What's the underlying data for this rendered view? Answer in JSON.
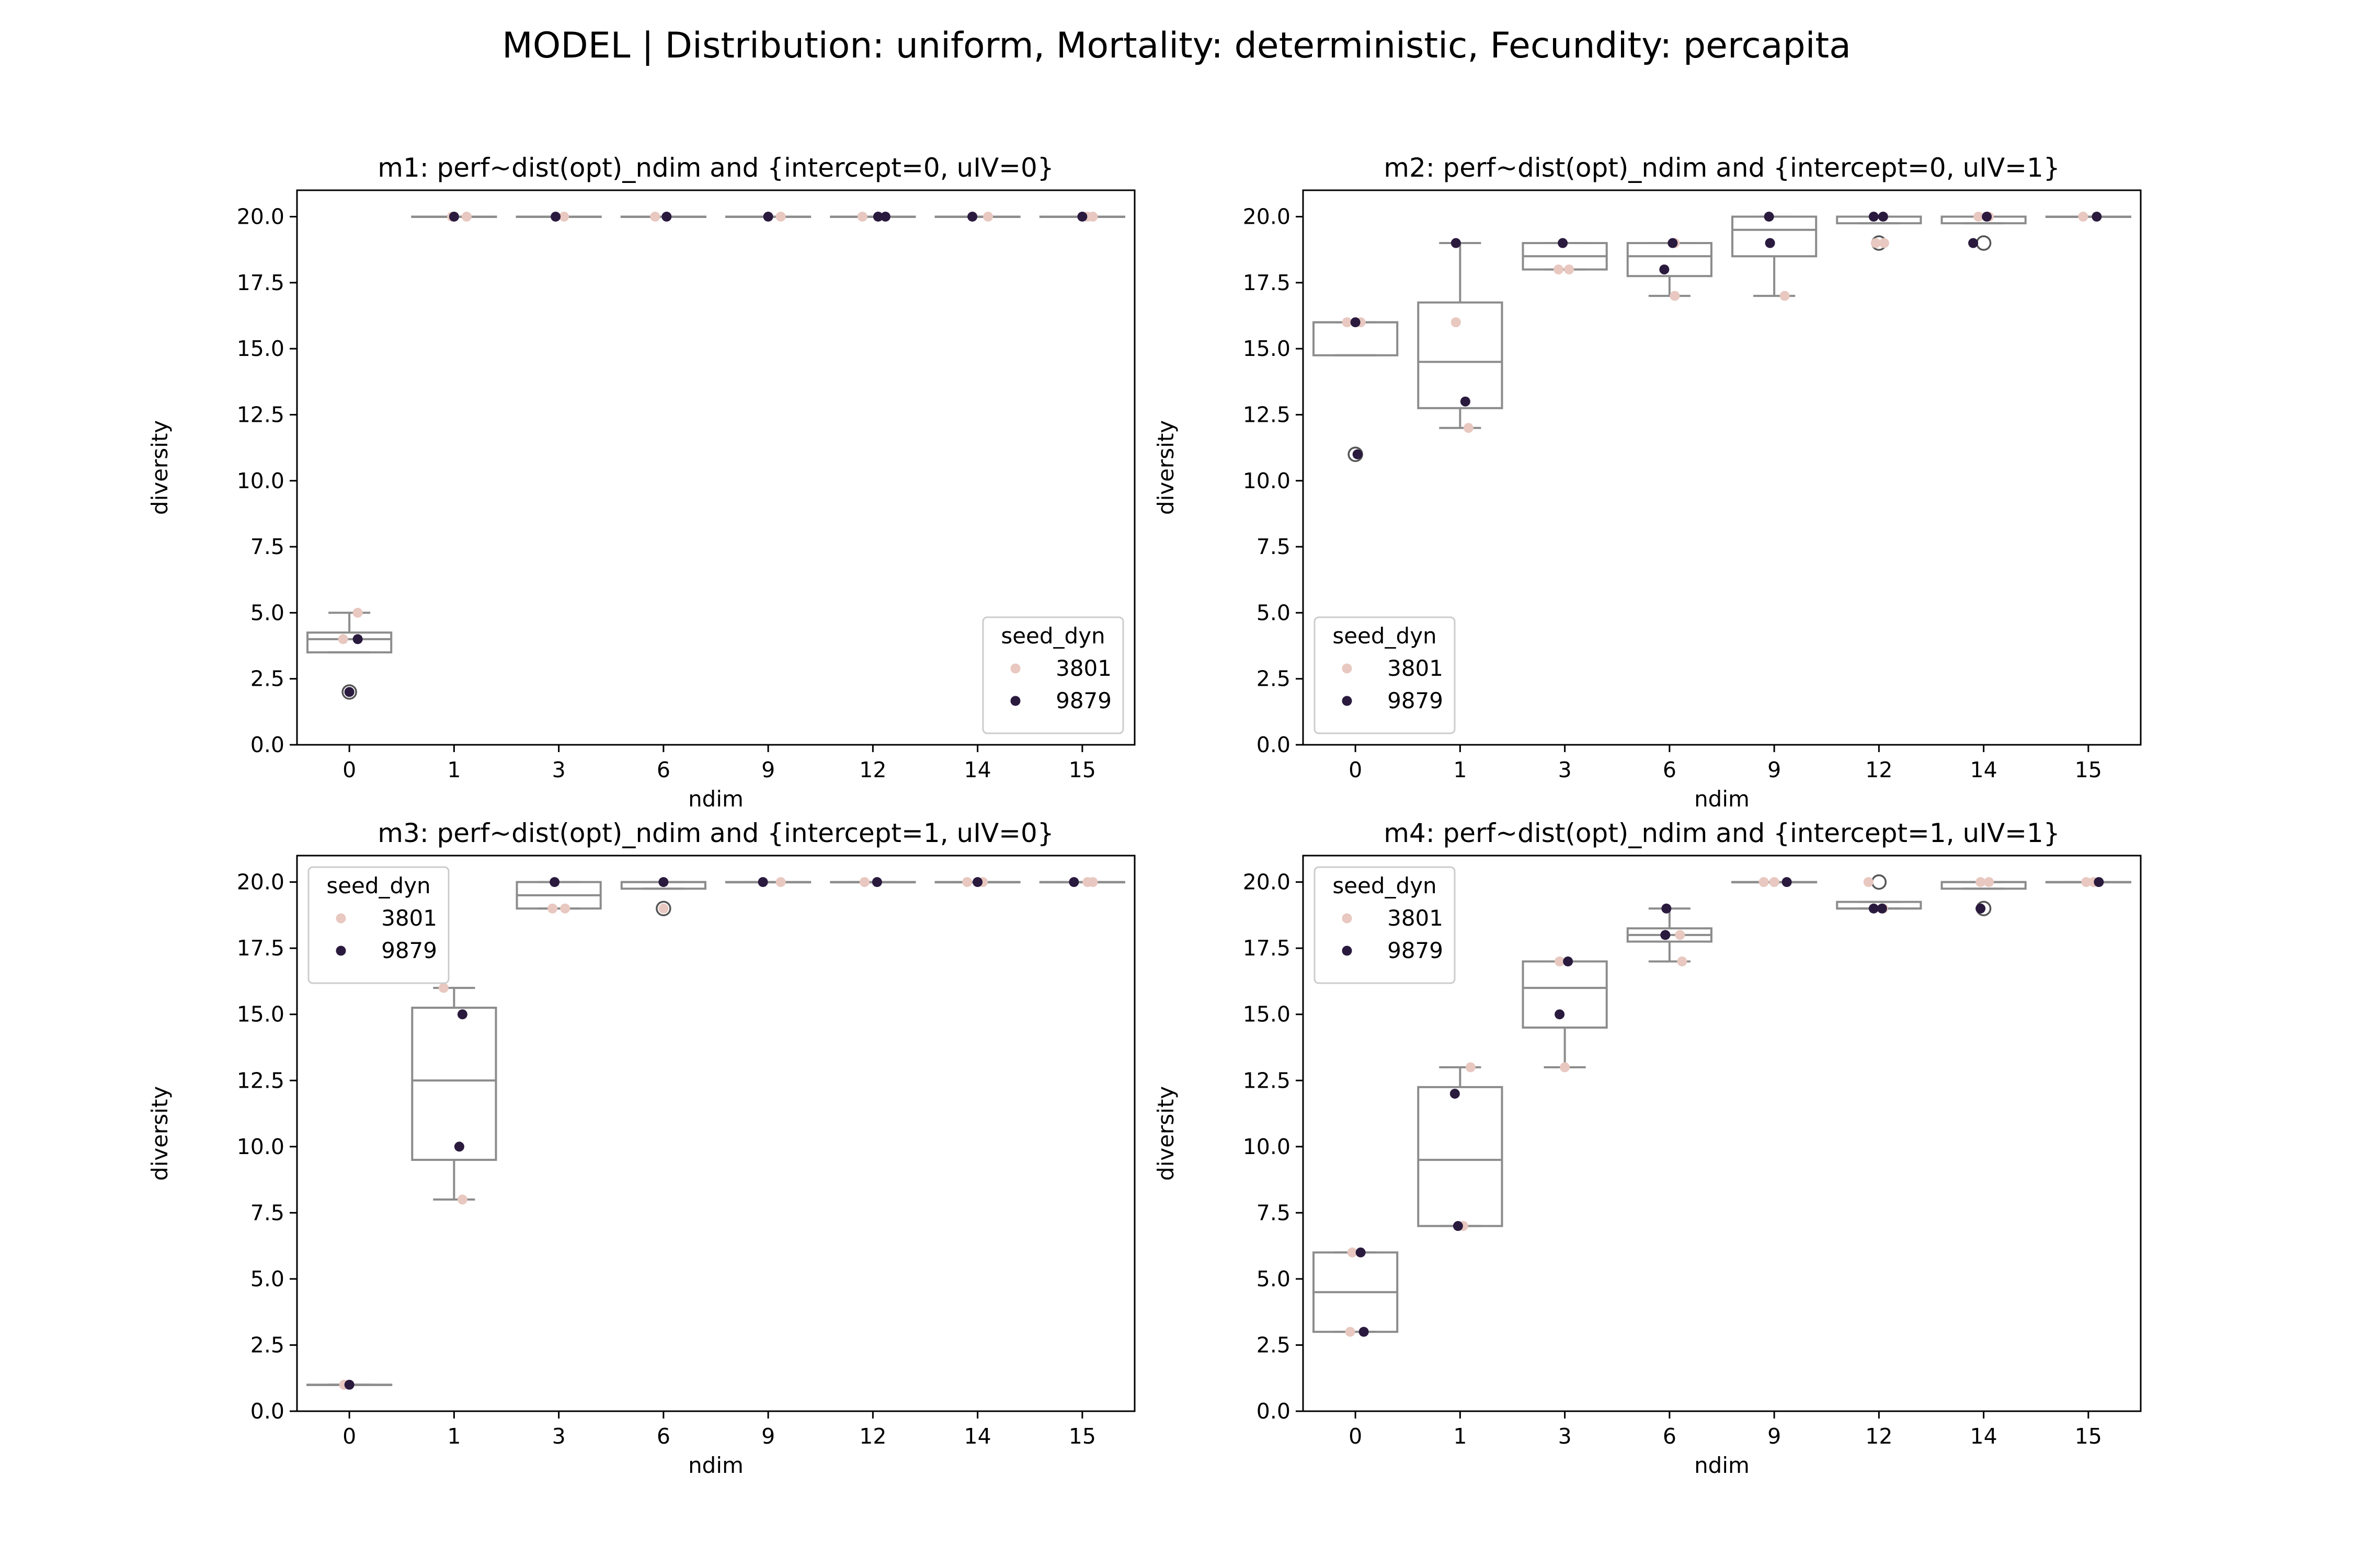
{
  "figure": {
    "suptitle": "MODEL | Distribution: uniform, Mortality: deterministic, Fecundity: percapita"
  },
  "colors": {
    "seed_3801": "#e8c8c0",
    "seed_9879": "#2a1a3e",
    "box": "#8c8c8c",
    "axes": "#000000"
  },
  "chart_data": [
    {
      "type": "box+strip",
      "title": "m1: perf~dist(opt)_ndim and {intercept=0, uIV=0}",
      "xlabel": "ndim",
      "ylabel": "diversity",
      "categories": [
        "0",
        "1",
        "3",
        "6",
        "9",
        "12",
        "14",
        "15"
      ],
      "ylim": [
        0,
        21
      ],
      "yticks": [
        "0.0",
        "2.5",
        "5.0",
        "7.5",
        "10.0",
        "12.5",
        "15.0",
        "17.5",
        "20.0"
      ],
      "legend": {
        "title": "seed_dyn",
        "entries": [
          "3801",
          "9879"
        ],
        "loc": "lower right"
      },
      "boxes": [
        {
          "q1": 3.5,
          "median": 4.0,
          "q3": 4.25,
          "whislo": 3.5,
          "whishi": 5.0,
          "fliers": [
            2.0
          ]
        },
        {
          "q1": 20,
          "median": 20,
          "q3": 20,
          "whislo": 20,
          "whishi": 20,
          "fliers": []
        },
        {
          "q1": 20,
          "median": 20,
          "q3": 20,
          "whislo": 20,
          "whishi": 20,
          "fliers": []
        },
        {
          "q1": 20,
          "median": 20,
          "q3": 20,
          "whislo": 20,
          "whishi": 20,
          "fliers": []
        },
        {
          "q1": 20,
          "median": 20,
          "q3": 20,
          "whislo": 20,
          "whishi": 20,
          "fliers": []
        },
        {
          "q1": 20,
          "median": 20,
          "q3": 20,
          "whislo": 20,
          "whishi": 20,
          "fliers": []
        },
        {
          "q1": 20,
          "median": 20,
          "q3": 20,
          "whislo": 20,
          "whishi": 20,
          "fliers": []
        },
        {
          "q1": 20,
          "median": 20,
          "q3": 20,
          "whislo": 20,
          "whishi": 20,
          "fliers": []
        }
      ],
      "series": [
        {
          "name": "3801",
          "points": [
            [
              0,
              5.0,
              0.08
            ],
            [
              0,
              4.0,
              -0.06
            ],
            [
              1,
              20,
              0.12
            ],
            [
              1,
              20,
              -0.02
            ],
            [
              3,
              20,
              0.05
            ],
            [
              6,
              20,
              -0.08
            ],
            [
              9,
              20,
              0.12
            ],
            [
              12,
              20,
              -0.1
            ],
            [
              14,
              20,
              0.1
            ],
            [
              15,
              20,
              0.05
            ],
            [
              15,
              20,
              0.1
            ]
          ]
        },
        {
          "name": "9879",
          "points": [
            [
              0,
              4.0,
              0.08
            ],
            [
              0,
              2.0,
              0.0
            ],
            [
              1,
              20,
              0.0
            ],
            [
              3,
              20,
              -0.03
            ],
            [
              6,
              20,
              0.03
            ],
            [
              9,
              20,
              0.0
            ],
            [
              12,
              20,
              0.05
            ],
            [
              12,
              20,
              0.12
            ],
            [
              14,
              20,
              -0.05
            ],
            [
              15,
              20,
              0.0
            ]
          ]
        }
      ]
    },
    {
      "type": "box+strip",
      "title": "m2: perf~dist(opt)_ndim and {intercept=0, uIV=1}",
      "xlabel": "ndim",
      "ylabel": "diversity",
      "categories": [
        "0",
        "1",
        "3",
        "6",
        "9",
        "12",
        "14",
        "15"
      ],
      "ylim": [
        0,
        21
      ],
      "yticks": [
        "0.0",
        "2.5",
        "5.0",
        "7.5",
        "10.0",
        "12.5",
        "15.0",
        "17.5",
        "20.0"
      ],
      "legend": {
        "title": "seed_dyn",
        "entries": [
          "3801",
          "9879"
        ],
        "loc": "lower left"
      },
      "boxes": [
        {
          "q1": 14.75,
          "median": 16.0,
          "q3": 16.0,
          "whislo": 14.75,
          "whishi": 16.0,
          "fliers": [
            11.0
          ]
        },
        {
          "q1": 12.75,
          "median": 14.5,
          "q3": 16.75,
          "whislo": 12.0,
          "whishi": 19.0,
          "fliers": []
        },
        {
          "q1": 18.0,
          "median": 18.5,
          "q3": 19.0,
          "whislo": 18.0,
          "whishi": 19.0,
          "fliers": []
        },
        {
          "q1": 17.75,
          "median": 18.5,
          "q3": 19.0,
          "whislo": 17.0,
          "whishi": 19.0,
          "fliers": []
        },
        {
          "q1": 18.5,
          "median": 19.5,
          "q3": 20.0,
          "whislo": 17.0,
          "whishi": 20.0,
          "fliers": []
        },
        {
          "q1": 19.75,
          "median": 20.0,
          "q3": 20.0,
          "whislo": 19.75,
          "whishi": 20.0,
          "fliers": [
            19.0
          ]
        },
        {
          "q1": 19.75,
          "median": 20.0,
          "q3": 20.0,
          "whislo": 19.75,
          "whishi": 20.0,
          "fliers": [
            19.0
          ]
        },
        {
          "q1": 20,
          "median": 20,
          "q3": 20,
          "whislo": 20,
          "whishi": 20,
          "fliers": []
        }
      ],
      "series": [
        {
          "name": "3801",
          "points": [
            [
              0,
              16.0,
              -0.08
            ],
            [
              0,
              16.0,
              0.05
            ],
            [
              1,
              16.0,
              -0.04
            ],
            [
              1,
              12.0,
              0.08
            ],
            [
              3,
              18.0,
              -0.06
            ],
            [
              3,
              18.0,
              0.04
            ],
            [
              6,
              19.0,
              0.05
            ],
            [
              6,
              17.0,
              0.05
            ],
            [
              9,
              17.0,
              0.1
            ],
            [
              12,
              19.0,
              -0.03
            ],
            [
              12,
              19.0,
              0.05
            ],
            [
              14,
              20.0,
              -0.05
            ],
            [
              14,
              20.0,
              0.05
            ],
            [
              15,
              20.0,
              -0.05
            ]
          ]
        },
        {
          "name": "9879",
          "points": [
            [
              0,
              16.0,
              0.0
            ],
            [
              0,
              11.0,
              0.02
            ],
            [
              1,
              19.0,
              -0.04
            ],
            [
              1,
              13.0,
              0.05
            ],
            [
              3,
              19.0,
              -0.02
            ],
            [
              6,
              19.0,
              0.03
            ],
            [
              6,
              18.0,
              -0.05
            ],
            [
              9,
              20.0,
              -0.05
            ],
            [
              9,
              19.0,
              -0.04
            ],
            [
              12,
              20.0,
              -0.05
            ],
            [
              12,
              20.0,
              0.04
            ],
            [
              14,
              20.0,
              0.03
            ],
            [
              14,
              19.0,
              -0.1
            ],
            [
              15,
              20.0,
              0.08
            ]
          ]
        }
      ]
    },
    {
      "type": "box+strip",
      "title": "m3: perf~dist(opt)_ndim and {intercept=1, uIV=0}",
      "xlabel": "ndim",
      "ylabel": "diversity",
      "categories": [
        "0",
        "1",
        "3",
        "6",
        "9",
        "12",
        "14",
        "15"
      ],
      "ylim": [
        0,
        21
      ],
      "yticks": [
        "0.0",
        "2.5",
        "5.0",
        "7.5",
        "10.0",
        "12.5",
        "15.0",
        "17.5",
        "20.0"
      ],
      "legend": {
        "title": "seed_dyn",
        "entries": [
          "3801",
          "9879"
        ],
        "loc": "upper left"
      },
      "boxes": [
        {
          "q1": 1,
          "median": 1,
          "q3": 1,
          "whislo": 1,
          "whishi": 1,
          "fliers": []
        },
        {
          "q1": 9.5,
          "median": 12.5,
          "q3": 15.25,
          "whislo": 8.0,
          "whishi": 16.0,
          "fliers": []
        },
        {
          "q1": 19.0,
          "median": 19.5,
          "q3": 20.0,
          "whislo": 19.0,
          "whishi": 20.0,
          "fliers": []
        },
        {
          "q1": 19.75,
          "median": 20.0,
          "q3": 20.0,
          "whislo": 19.75,
          "whishi": 20.0,
          "fliers": [
            19.0
          ]
        },
        {
          "q1": 20,
          "median": 20,
          "q3": 20,
          "whislo": 20,
          "whishi": 20,
          "fliers": []
        },
        {
          "q1": 20,
          "median": 20,
          "q3": 20,
          "whislo": 20,
          "whishi": 20,
          "fliers": []
        },
        {
          "q1": 20,
          "median": 20,
          "q3": 20,
          "whislo": 20,
          "whishi": 20,
          "fliers": []
        },
        {
          "q1": 20,
          "median": 20,
          "q3": 20,
          "whislo": 20,
          "whishi": 20,
          "fliers": []
        }
      ],
      "series": [
        {
          "name": "3801",
          "points": [
            [
              0,
              1.0,
              -0.05
            ],
            [
              1,
              16.0,
              -0.1
            ],
            [
              1,
              8.0,
              0.08
            ],
            [
              3,
              19.0,
              -0.06
            ],
            [
              3,
              19.0,
              0.06
            ],
            [
              6,
              19.0,
              0.0
            ],
            [
              9,
              20.0,
              0.12
            ],
            [
              12,
              20.0,
              -0.08
            ],
            [
              14,
              20.0,
              -0.1
            ],
            [
              14,
              20.0,
              0.05
            ],
            [
              15,
              20.0,
              0.05
            ],
            [
              15,
              20.0,
              0.1
            ]
          ]
        },
        {
          "name": "9879",
          "points": [
            [
              0,
              1.0,
              0.0
            ],
            [
              1,
              15.0,
              0.08
            ],
            [
              1,
              10.0,
              0.05
            ],
            [
              3,
              20.0,
              -0.04
            ],
            [
              6,
              20.0,
              0.0
            ],
            [
              9,
              20.0,
              -0.05
            ],
            [
              12,
              20.0,
              0.04
            ],
            [
              14,
              20.0,
              0.0
            ],
            [
              15,
              20.0,
              -0.08
            ]
          ]
        }
      ]
    },
    {
      "type": "box+strip",
      "title": "m4: perf~dist(opt)_ndim and {intercept=1, uIV=1}",
      "xlabel": "ndim",
      "ylabel": "diversity",
      "categories": [
        "0",
        "1",
        "3",
        "6",
        "9",
        "12",
        "14",
        "15"
      ],
      "ylim": [
        0,
        21
      ],
      "yticks": [
        "0.0",
        "2.5",
        "5.0",
        "7.5",
        "10.0",
        "12.5",
        "15.0",
        "17.5",
        "20.0"
      ],
      "legend": {
        "title": "seed_dyn",
        "entries": [
          "3801",
          "9879"
        ],
        "loc": "upper left"
      },
      "boxes": [
        {
          "q1": 3.0,
          "median": 4.5,
          "q3": 6.0,
          "whislo": 3.0,
          "whishi": 6.0,
          "fliers": []
        },
        {
          "q1": 7.0,
          "median": 9.5,
          "q3": 12.25,
          "whislo": 7.0,
          "whishi": 13.0,
          "fliers": []
        },
        {
          "q1": 14.5,
          "median": 16.0,
          "q3": 17.0,
          "whislo": 13.0,
          "whishi": 17.0,
          "fliers": []
        },
        {
          "q1": 17.75,
          "median": 18.0,
          "q3": 18.25,
          "whislo": 17.0,
          "whishi": 19.0,
          "fliers": []
        },
        {
          "q1": 20,
          "median": 20,
          "q3": 20,
          "whislo": 20,
          "whishi": 20,
          "fliers": []
        },
        {
          "q1": 19.0,
          "median": 19.0,
          "q3": 19.25,
          "whislo": 19.0,
          "whishi": 19.25,
          "fliers": [
            20.0
          ]
        },
        {
          "q1": 19.75,
          "median": 20.0,
          "q3": 20.0,
          "whislo": 19.75,
          "whishi": 20.0,
          "fliers": [
            19.0
          ]
        },
        {
          "q1": 20,
          "median": 20,
          "q3": 20,
          "whislo": 20,
          "whishi": 20,
          "fliers": []
        }
      ],
      "series": [
        {
          "name": "3801",
          "points": [
            [
              0,
              6.0,
              -0.03
            ],
            [
              0,
              3.0,
              -0.05
            ],
            [
              1,
              13.0,
              0.1
            ],
            [
              1,
              7.0,
              0.03
            ],
            [
              3,
              17.0,
              -0.05
            ],
            [
              3,
              13.0,
              0.0
            ],
            [
              6,
              18.0,
              0.1
            ],
            [
              6,
              17.0,
              0.12
            ],
            [
              9,
              20.0,
              -0.1
            ],
            [
              9,
              20.0,
              0.0
            ],
            [
              12,
              20.0,
              -0.1
            ],
            [
              12,
              19.0,
              0.04
            ],
            [
              14,
              20.0,
              -0.03
            ],
            [
              14,
              20.0,
              0.05
            ],
            [
              15,
              20.0,
              -0.02
            ],
            [
              15,
              20.0,
              0.05
            ]
          ]
        },
        {
          "name": "9879",
          "points": [
            [
              0,
              6.0,
              0.05
            ],
            [
              0,
              3.0,
              0.08
            ],
            [
              1,
              12.0,
              -0.05
            ],
            [
              1,
              7.0,
              -0.02
            ],
            [
              3,
              17.0,
              0.03
            ],
            [
              3,
              15.0,
              -0.05
            ],
            [
              6,
              19.0,
              -0.03
            ],
            [
              6,
              18.0,
              -0.04
            ],
            [
              9,
              20.0,
              0.12
            ],
            [
              12,
              19.0,
              -0.05
            ],
            [
              12,
              19.0,
              0.03
            ],
            [
              14,
              19.0,
              -0.03
            ],
            [
              15,
              20.0,
              0.1
            ]
          ]
        }
      ]
    }
  ]
}
